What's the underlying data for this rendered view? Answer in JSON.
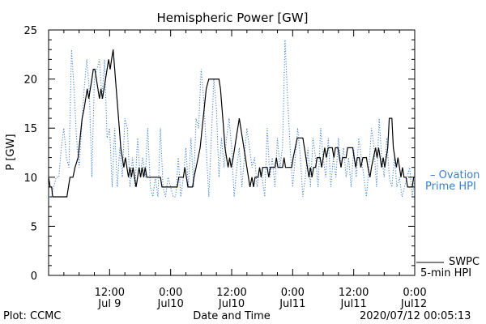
{
  "chart_data": {
    "type": "line",
    "title": "Hemispheric Power [GW]",
    "ylabel": "P [GW]",
    "xlabel": "Date and Time",
    "ylim": [
      0,
      25
    ],
    "y_ticks": [
      "0",
      "5",
      "10",
      "15",
      "20",
      "25"
    ],
    "x_range_hours": [
      0,
      72
    ],
    "x_ticks": [
      {
        "hour": 12,
        "time": "12:00",
        "date": "Jul 9"
      },
      {
        "hour": 24,
        "time": "0:00",
        "date": "Jul10"
      },
      {
        "hour": 36,
        "time": "12:00",
        "date": "Jul10"
      },
      {
        "hour": 48,
        "time": "0:00",
        "date": "Jul11"
      },
      {
        "hour": 60,
        "time": "12:00",
        "date": "Jul11"
      },
      {
        "hour": 72,
        "time": "0:00",
        "date": "Jul12"
      }
    ],
    "grid": false,
    "series": [
      {
        "name": "SWPC 5-min HPI",
        "line1": "SWPC",
        "line2": "5-min HPI",
        "color": "#000000",
        "style": "solid",
        "points": [
          [
            0,
            10
          ],
          [
            0.3,
            9
          ],
          [
            0.6,
            9
          ],
          [
            0.8,
            8
          ],
          [
            1.5,
            8
          ],
          [
            2.5,
            8
          ],
          [
            3.6,
            8
          ],
          [
            3.9,
            9
          ],
          [
            4.2,
            10
          ],
          [
            4.8,
            10
          ],
          [
            5.2,
            11
          ],
          [
            5.8,
            12
          ],
          [
            6.2,
            14
          ],
          [
            6.6,
            16
          ],
          [
            7,
            17
          ],
          [
            7.3,
            18
          ],
          [
            7.6,
            19
          ],
          [
            7.9,
            18
          ],
          [
            8.2,
            19
          ],
          [
            8.5,
            20
          ],
          [
            8.8,
            21
          ],
          [
            9.1,
            21
          ],
          [
            9.4,
            20
          ],
          [
            9.7,
            19
          ],
          [
            10,
            18
          ],
          [
            10.3,
            19
          ],
          [
            10.6,
            18
          ],
          [
            10.9,
            19
          ],
          [
            11.2,
            20
          ],
          [
            11.5,
            21
          ],
          [
            11.8,
            22
          ],
          [
            12.1,
            21
          ],
          [
            12.4,
            22
          ],
          [
            12.7,
            23
          ],
          [
            13,
            21
          ],
          [
            13.3,
            19
          ],
          [
            13.6,
            17
          ],
          [
            13.9,
            15
          ],
          [
            14.2,
            13
          ],
          [
            14.5,
            12
          ],
          [
            14.8,
            11
          ],
          [
            15.1,
            12
          ],
          [
            15.4,
            11
          ],
          [
            15.7,
            10
          ],
          [
            16,
            11
          ],
          [
            16.3,
            10
          ],
          [
            16.6,
            11
          ],
          [
            16.9,
            10
          ],
          [
            17.2,
            9
          ],
          [
            17.5,
            10
          ],
          [
            17.8,
            11
          ],
          [
            18.1,
            10
          ],
          [
            18.4,
            11
          ],
          [
            18.7,
            10
          ],
          [
            19,
            11
          ],
          [
            19.3,
            10
          ],
          [
            20,
            10
          ],
          [
            22,
            10
          ],
          [
            22.3,
            9
          ],
          [
            24,
            9
          ],
          [
            25.3,
            9
          ],
          [
            25.6,
            10
          ],
          [
            26.5,
            10
          ],
          [
            26.8,
            11
          ],
          [
            27.1,
            10
          ],
          [
            27.4,
            9
          ],
          [
            28.3,
            9
          ],
          [
            28.6,
            10
          ],
          [
            29,
            11
          ],
          [
            29.4,
            12
          ],
          [
            29.8,
            13
          ],
          [
            30.2,
            15
          ],
          [
            30.6,
            17
          ],
          [
            31,
            19
          ],
          [
            31.5,
            20
          ],
          [
            32.3,
            20
          ],
          [
            33.5,
            20
          ],
          [
            33.8,
            19
          ],
          [
            34.1,
            17
          ],
          [
            34.4,
            15
          ],
          [
            34.7,
            13
          ],
          [
            35,
            12
          ],
          [
            35.3,
            11
          ],
          [
            35.6,
            12
          ],
          [
            35.9,
            11
          ],
          [
            36.3,
            12
          ],
          [
            36.6,
            13
          ],
          [
            36.9,
            14
          ],
          [
            37.2,
            15
          ],
          [
            37.5,
            16
          ],
          [
            37.8,
            15
          ],
          [
            38.1,
            14
          ],
          [
            38.4,
            13
          ],
          [
            38.7,
            12
          ],
          [
            39,
            11
          ],
          [
            39.3,
            10
          ],
          [
            39.6,
            9
          ],
          [
            40,
            10
          ],
          [
            40.3,
            9
          ],
          [
            40.6,
            10
          ],
          [
            41.2,
            10
          ],
          [
            41.5,
            11
          ],
          [
            41.8,
            10
          ],
          [
            42.1,
            11
          ],
          [
            43,
            11
          ],
          [
            43.3,
            10
          ],
          [
            43.6,
            11
          ],
          [
            44.5,
            11
          ],
          [
            44.8,
            12
          ],
          [
            45.1,
            11
          ],
          [
            46,
            11
          ],
          [
            46.3,
            12
          ],
          [
            46.6,
            11
          ],
          [
            47,
            11
          ],
          [
            47.8,
            11
          ],
          [
            48.1,
            12
          ],
          [
            48.5,
            13
          ],
          [
            48.9,
            14
          ],
          [
            49.3,
            14
          ],
          [
            50,
            14
          ],
          [
            50.3,
            13
          ],
          [
            50.6,
            12
          ],
          [
            50.9,
            11
          ],
          [
            51.2,
            10
          ],
          [
            51.5,
            11
          ],
          [
            51.8,
            10
          ],
          [
            52.1,
            11
          ],
          [
            52.5,
            11
          ],
          [
            52.8,
            12
          ],
          [
            53.4,
            12
          ],
          [
            53.7,
            11
          ],
          [
            54,
            12
          ],
          [
            54.3,
            13
          ],
          [
            54.6,
            12
          ],
          [
            55,
            13
          ],
          [
            55.8,
            13
          ],
          [
            56.1,
            12
          ],
          [
            56.4,
            13
          ],
          [
            56.9,
            13
          ],
          [
            57.2,
            12
          ],
          [
            57.5,
            11
          ],
          [
            57.8,
            12
          ],
          [
            58.5,
            12
          ],
          [
            58.8,
            13
          ],
          [
            59.8,
            13
          ],
          [
            60.1,
            12
          ],
          [
            60.4,
            11
          ],
          [
            60.7,
            12
          ],
          [
            61.1,
            12
          ],
          [
            61.4,
            11
          ],
          [
            61.8,
            12
          ],
          [
            62.5,
            12
          ],
          [
            62.8,
            11
          ],
          [
            63.2,
            10
          ],
          [
            63.5,
            11
          ],
          [
            63.9,
            12
          ],
          [
            64.3,
            13
          ],
          [
            64.6,
            12
          ],
          [
            64.9,
            13
          ],
          [
            65.2,
            12
          ],
          [
            65.5,
            11
          ],
          [
            65.8,
            12
          ],
          [
            66.1,
            11
          ],
          [
            66.4,
            12
          ],
          [
            66.7,
            13
          ],
          [
            67,
            16
          ],
          [
            67.5,
            16
          ],
          [
            67.8,
            13
          ],
          [
            68.1,
            12
          ],
          [
            68.4,
            11
          ],
          [
            68.7,
            12
          ],
          [
            69,
            11
          ],
          [
            69.3,
            10
          ],
          [
            69.6,
            11
          ],
          [
            69.9,
            10
          ],
          [
            70.3,
            10
          ],
          [
            70.6,
            9
          ],
          [
            71,
            9
          ],
          [
            71.5,
            9
          ],
          [
            71.8,
            10
          ],
          [
            72,
            10
          ]
        ]
      },
      {
        "name": "Ovation Prime HPI",
        "line1": "– Ovation",
        "line2": "Prime HPI",
        "color": "#3a7fd0",
        "style": "dotted",
        "points": [
          [
            0,
            8
          ],
          [
            0.5,
            8
          ],
          [
            1,
            9
          ],
          [
            1.5,
            10
          ],
          [
            2,
            10
          ],
          [
            2.5,
            13
          ],
          [
            3,
            15
          ],
          [
            3.5,
            12
          ],
          [
            4,
            11
          ],
          [
            4.5,
            23
          ],
          [
            5,
            19
          ],
          [
            5.5,
            14
          ],
          [
            6,
            11
          ],
          [
            6.5,
            15
          ],
          [
            7,
            19
          ],
          [
            7.5,
            22
          ],
          [
            8,
            19
          ],
          [
            8.5,
            10
          ],
          [
            9,
            20
          ],
          [
            9.5,
            21
          ],
          [
            10,
            22
          ],
          [
            10.5,
            18
          ],
          [
            11,
            22
          ],
          [
            11.5,
            14
          ],
          [
            12,
            15
          ],
          [
            12.5,
            9
          ],
          [
            13,
            15
          ],
          [
            13.5,
            9
          ],
          [
            14,
            13
          ],
          [
            14.5,
            10
          ],
          [
            15,
            16
          ],
          [
            15.5,
            15
          ],
          [
            16,
            9
          ],
          [
            16.5,
            12
          ],
          [
            17,
            9
          ],
          [
            17.5,
            14
          ],
          [
            18,
            10
          ],
          [
            18.5,
            12
          ],
          [
            19,
            10
          ],
          [
            19.5,
            15
          ],
          [
            20,
            9
          ],
          [
            20.5,
            8
          ],
          [
            21,
            10
          ],
          [
            21.5,
            8
          ],
          [
            22,
            15
          ],
          [
            22.5,
            9
          ],
          [
            23,
            8
          ],
          [
            23.5,
            10
          ],
          [
            24,
            9
          ],
          [
            24.5,
            8
          ],
          [
            25,
            8
          ],
          [
            25.5,
            12
          ],
          [
            26,
            8
          ],
          [
            26.5,
            10
          ],
          [
            27,
            13
          ],
          [
            27.5,
            9
          ],
          [
            28,
            14
          ],
          [
            28.5,
            9
          ],
          [
            29,
            16
          ],
          [
            29.5,
            15
          ],
          [
            30,
            21
          ],
          [
            30.5,
            18
          ],
          [
            31,
            13
          ],
          [
            31.5,
            8
          ],
          [
            32,
            14
          ],
          [
            32.5,
            20
          ],
          [
            33,
            17
          ],
          [
            33.5,
            10
          ],
          [
            34,
            14
          ],
          [
            34.5,
            11
          ],
          [
            35,
            14
          ],
          [
            35.5,
            16
          ],
          [
            36,
            13
          ],
          [
            36.5,
            8
          ],
          [
            37,
            11
          ],
          [
            37.5,
            13
          ],
          [
            38,
            9
          ],
          [
            38.5,
            12
          ],
          [
            39,
            15
          ],
          [
            39.5,
            13
          ],
          [
            40,
            11
          ],
          [
            40.5,
            12
          ],
          [
            41,
            9
          ],
          [
            41.5,
            11
          ],
          [
            42,
            10
          ],
          [
            42.5,
            8
          ],
          [
            43,
            15
          ],
          [
            43.5,
            10
          ],
          [
            44,
            12
          ],
          [
            44.5,
            9
          ],
          [
            45,
            14
          ],
          [
            45.5,
            11
          ],
          [
            46,
            13
          ],
          [
            46.5,
            24
          ],
          [
            47,
            18
          ],
          [
            47.5,
            13
          ],
          [
            48,
            9
          ],
          [
            48.5,
            12
          ],
          [
            49,
            15
          ],
          [
            49.5,
            12
          ],
          [
            50,
            8
          ],
          [
            50.5,
            10
          ],
          [
            51,
            13
          ],
          [
            51.5,
            9
          ],
          [
            52,
            14
          ],
          [
            52.5,
            12
          ],
          [
            53,
            9
          ],
          [
            53.5,
            15
          ],
          [
            54,
            12
          ],
          [
            54.5,
            10
          ],
          [
            55,
            14
          ],
          [
            55.5,
            9
          ],
          [
            56,
            12
          ],
          [
            56.5,
            10
          ],
          [
            57,
            14
          ],
          [
            57.5,
            11
          ],
          [
            58,
            13
          ],
          [
            58.5,
            10
          ],
          [
            59,
            12
          ],
          [
            59.5,
            9
          ],
          [
            60,
            13
          ],
          [
            60.5,
            10
          ],
          [
            61,
            14
          ],
          [
            61.5,
            12
          ],
          [
            62,
            10
          ],
          [
            62.5,
            8
          ],
          [
            63,
            11
          ],
          [
            63.5,
            15
          ],
          [
            64,
            13
          ],
          [
            64.5,
            9
          ],
          [
            65,
            16
          ],
          [
            65.5,
            12
          ],
          [
            66,
            10
          ],
          [
            66.5,
            14
          ],
          [
            67,
            10
          ],
          [
            67.5,
            9
          ],
          [
            68,
            12
          ],
          [
            68.5,
            9
          ],
          [
            69,
            10
          ],
          [
            69.5,
            8
          ],
          [
            70,
            9
          ],
          [
            70.5,
            10
          ],
          [
            71,
            11
          ],
          [
            71.5,
            8
          ],
          [
            72,
            10
          ]
        ]
      }
    ]
  },
  "footer": {
    "plot_credit": "Plot: CCMC",
    "timestamp": "2020/07/12 00:05:13"
  }
}
